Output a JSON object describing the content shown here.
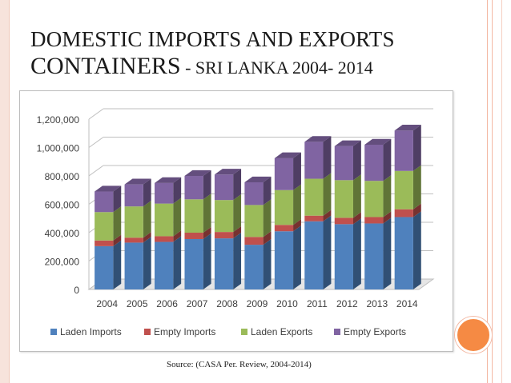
{
  "slide": {
    "title_line1": "DOMESTIC IMPORTS AND EXPORTS",
    "title_line2_main": "CONTAINERS",
    "title_line2_rest": " - SRI LANKA 2004- 2014",
    "source": "Source: (CASA Per. Review, 2004-2014)"
  },
  "colors": {
    "laden_imports": "#4f81bd",
    "empty_imports": "#c0504d",
    "laden_exports": "#9bbb59",
    "empty_exports": "#8064a2",
    "accent_dot": "#f58a44"
  },
  "chart_data": {
    "type": "bar",
    "stacked": true,
    "three_d": true,
    "categories": [
      "2004",
      "2005",
      "2006",
      "2007",
      "2008",
      "2009",
      "2010",
      "2011",
      "2012",
      "2013",
      "2014"
    ],
    "series": [
      {
        "name": "Laden Imports",
        "values": [
          305000,
          330000,
          335000,
          355000,
          360000,
          315000,
          410000,
          480000,
          460000,
          465000,
          510000
        ]
      },
      {
        "name": "Empty Imports",
        "values": [
          40000,
          35000,
          40000,
          45000,
          45000,
          55000,
          45000,
          40000,
          45000,
          45000,
          55000
        ]
      },
      {
        "name": "Laden Exports",
        "values": [
          200000,
          220000,
          230000,
          235000,
          225000,
          225000,
          245000,
          260000,
          265000,
          255000,
          270000
        ]
      },
      {
        "name": "Empty Exports",
        "values": [
          145000,
          155000,
          145000,
          165000,
          180000,
          160000,
          225000,
          260000,
          240000,
          255000,
          285000
        ]
      }
    ],
    "y_ticks": [
      "0",
      "200,000",
      "400,000",
      "600,000",
      "800,000",
      "1,000,000",
      "1,200,000"
    ],
    "ylim": [
      0,
      1200000
    ],
    "grid": true,
    "legend_position": "bottom"
  }
}
